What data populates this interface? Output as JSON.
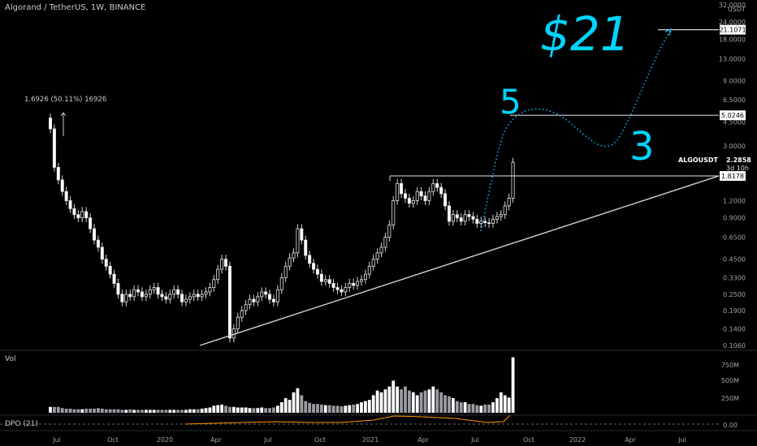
{
  "header": {
    "title": "Algorand / TetherUS, 1W, BINANCE"
  },
  "price_axis": {
    "labels": [
      "32.0000",
      "24.0000",
      "18.0000",
      "13.0000",
      "9.0000",
      "6.5000",
      "4.5000",
      "3.0000",
      "1.8000",
      "1.2000",
      "0.9000",
      "0.6500",
      "0.4500",
      "0.3300",
      "0.2500",
      "0.1900",
      "0.1400",
      "0.1060"
    ],
    "unit": "USDT"
  },
  "time_axis": {
    "labels": [
      "Jul",
      "Oct",
      "2020",
      "Apr",
      "Jul",
      "Oct",
      "2021",
      "Apr",
      "Jul",
      "Oct",
      "2022",
      "Apr",
      "Jul"
    ]
  },
  "annotations": {
    "ath_label": "1.6926 (50.11%) 16926",
    "target_text": "$21",
    "wave_5": "5",
    "wave_3": "3",
    "level_21": "21.1071",
    "level_5": "5.0246",
    "level_1_8": "1.8178",
    "symbol_tag": "ALGOUSDT",
    "last_price": "2.2858",
    "countdown": "3d 10h"
  },
  "volume_panel": {
    "label": "Vol",
    "axis": [
      "750M",
      "500M",
      "250M"
    ]
  },
  "dpo_panel": {
    "label": "DPO (21)",
    "axis": [
      "0.00"
    ]
  },
  "colors": {
    "up": "#d1d4dc",
    "down": "#ffffff",
    "accent": "#00d4ff",
    "line": "#cfcfcf",
    "dpo": "#ff9800"
  },
  "chart_data": {
    "type": "candlestick",
    "x_start": "2019-06 (weekly)",
    "y_scale": "log",
    "close": [
      4.0,
      2.1,
      1.7,
      1.4,
      1.2,
      1.05,
      0.95,
      0.9,
      1.0,
      0.9,
      0.75,
      0.62,
      0.55,
      0.45,
      0.4,
      0.35,
      0.3,
      0.25,
      0.22,
      0.25,
      0.24,
      0.27,
      0.26,
      0.24,
      0.25,
      0.27,
      0.28,
      0.25,
      0.24,
      0.23,
      0.25,
      0.27,
      0.25,
      0.22,
      0.23,
      0.24,
      0.25,
      0.24,
      0.25,
      0.26,
      0.28,
      0.32,
      0.38,
      0.45,
      0.4,
      0.12,
      0.14,
      0.17,
      0.19,
      0.21,
      0.23,
      0.22,
      0.24,
      0.26,
      0.25,
      0.23,
      0.22,
      0.27,
      0.33,
      0.4,
      0.46,
      0.5,
      0.75,
      0.62,
      0.48,
      0.42,
      0.38,
      0.35,
      0.31,
      0.32,
      0.3,
      0.28,
      0.27,
      0.26,
      0.28,
      0.3,
      0.29,
      0.31,
      0.32,
      0.35,
      0.4,
      0.45,
      0.5,
      0.55,
      0.65,
      0.8,
      1.2,
      1.6,
      1.35,
      1.25,
      1.15,
      1.2,
      1.4,
      1.3,
      1.2,
      1.4,
      1.6,
      1.5,
      1.35,
      1.1,
      0.85,
      0.95,
      0.9,
      0.85,
      0.95,
      0.92,
      0.88,
      0.82,
      0.85,
      0.83,
      0.82,
      0.88,
      0.92,
      0.95,
      1.1,
      1.25,
      2.2858
    ],
    "volume_relative": [
      0.1,
      0.1,
      0.1,
      0.08,
      0.07,
      0.07,
      0.06,
      0.06,
      0.06,
      0.07,
      0.07,
      0.07,
      0.08,
      0.07,
      0.06,
      0.06,
      0.06,
      0.06,
      0.05,
      0.05,
      0.06,
      0.05,
      0.05,
      0.05,
      0.05,
      0.05,
      0.05,
      0.05,
      0.05,
      0.05,
      0.05,
      0.05,
      0.05,
      0.05,
      0.05,
      0.06,
      0.06,
      0.06,
      0.07,
      0.08,
      0.09,
      0.12,
      0.13,
      0.14,
      0.12,
      0.1,
      0.1,
      0.09,
      0.09,
      0.09,
      0.08,
      0.08,
      0.08,
      0.09,
      0.08,
      0.08,
      0.09,
      0.12,
      0.18,
      0.25,
      0.22,
      0.35,
      0.42,
      0.3,
      0.2,
      0.17,
      0.15,
      0.15,
      0.14,
      0.13,
      0.13,
      0.12,
      0.12,
      0.11,
      0.12,
      0.13,
      0.14,
      0.15,
      0.18,
      0.2,
      0.22,
      0.3,
      0.38,
      0.35,
      0.4,
      0.45,
      0.55,
      0.45,
      0.4,
      0.45,
      0.38,
      0.35,
      0.3,
      0.35,
      0.38,
      0.4,
      0.45,
      0.4,
      0.35,
      0.3,
      0.28,
      0.25,
      0.2,
      0.18,
      0.18,
      0.15,
      0.15,
      0.13,
      0.12,
      0.14,
      0.14,
      0.18,
      0.25,
      0.35,
      0.3,
      0.26,
      0.95
    ],
    "horizontal_levels": [
      21.1071,
      5.0246,
      1.8178
    ],
    "trendline": {
      "from": {
        "x_index": 45,
        "y": 0.106
      },
      "to": {
        "x_index": 200,
        "y": 1.8178
      }
    }
  }
}
